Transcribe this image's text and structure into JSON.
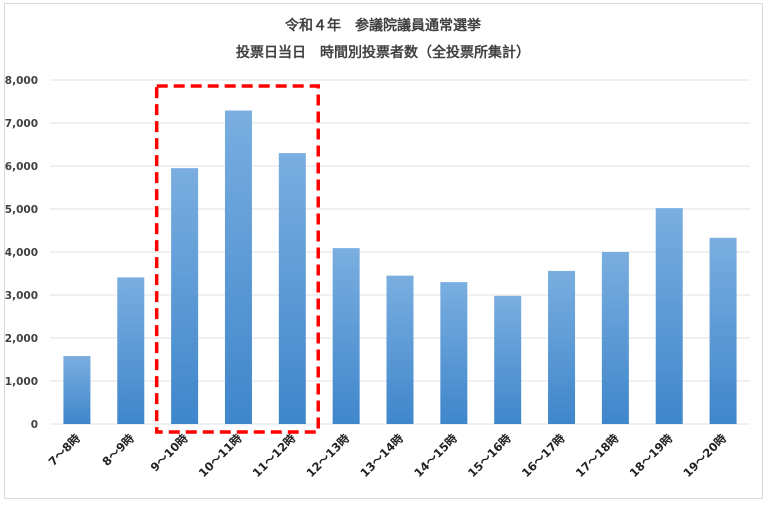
{
  "chart_data": {
    "type": "bar",
    "title": "令和４年　参議院議員通常選挙",
    "subtitle": "投票日当日　時間別投票者数（全投票所集計）",
    "categories": [
      "7～8時",
      "8～9時",
      "9～10時",
      "10～11時",
      "11～12時",
      "12～13時",
      "13～14時",
      "14～15時",
      "15～16時",
      "16～17時",
      "17～18時",
      "18～19時",
      "19～20時"
    ],
    "values": [
      1580,
      3410,
      5950,
      7290,
      6300,
      4090,
      3450,
      3300,
      2980,
      3560,
      4000,
      5020,
      4330
    ],
    "ylim": [
      0,
      8000
    ],
    "yticks": [
      "0",
      "1,000",
      "2,000",
      "3,000",
      "4,000",
      "5,000",
      "6,000",
      "7,000",
      "8,000"
    ],
    "ytick_values": [
      0,
      1000,
      2000,
      3000,
      4000,
      5000,
      6000,
      7000,
      8000
    ],
    "grid": true,
    "highlight_categories": [
      "9～10時",
      "10～11時",
      "11～12時"
    ],
    "colors": {
      "bar_top": "#7aaee0",
      "bar_bottom": "#3f86cb",
      "highlight_box": "#ff0000",
      "grid": "#e0e0e0"
    }
  }
}
